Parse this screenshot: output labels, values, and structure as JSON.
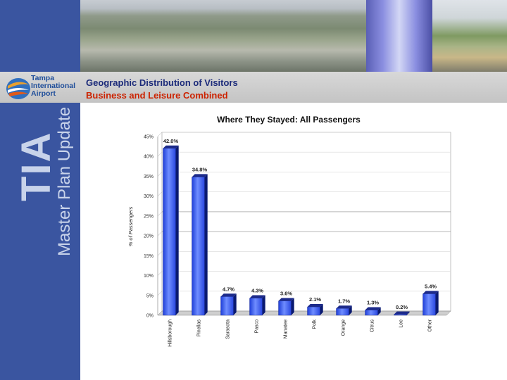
{
  "header": {
    "title": "Geographic Distribution of Visitors",
    "subtitle": "Business and Leisure Combined",
    "logo_lines": [
      "Tampa",
      "International",
      "Airport"
    ]
  },
  "sidebar": {
    "brand": "TIA",
    "tagline": "Master Plan Update"
  },
  "colors": {
    "sidebar": "#3a55a0",
    "title": "#1c2b7a",
    "subtitle": "#cc2200",
    "bar": "#3b5bef"
  },
  "chart_data": {
    "type": "bar",
    "title": "Where They Stayed: All Passengers",
    "ylabel": "% of Passengers",
    "xlabel": "",
    "ylim": [
      0,
      45
    ],
    "yticks": [
      "0%",
      "5%",
      "10%",
      "15%",
      "20%",
      "25%",
      "30%",
      "35%",
      "40%",
      "45%"
    ],
    "categories": [
      "Hillsborough",
      "Pinellas",
      "Sarasota",
      "Pasco",
      "Manatee",
      "Polk",
      "Orange",
      "Citrus",
      "Lee",
      "Other"
    ],
    "values": [
      42.0,
      34.8,
      4.7,
      4.3,
      3.6,
      2.1,
      1.7,
      1.3,
      0.2,
      5.4
    ],
    "value_labels": [
      "42.0%",
      "34.8%",
      "4.7%",
      "4.3%",
      "3.6%",
      "2.1%",
      "1.7%",
      "1.3%",
      "0.2%",
      "5.4%"
    ],
    "grid": true
  }
}
